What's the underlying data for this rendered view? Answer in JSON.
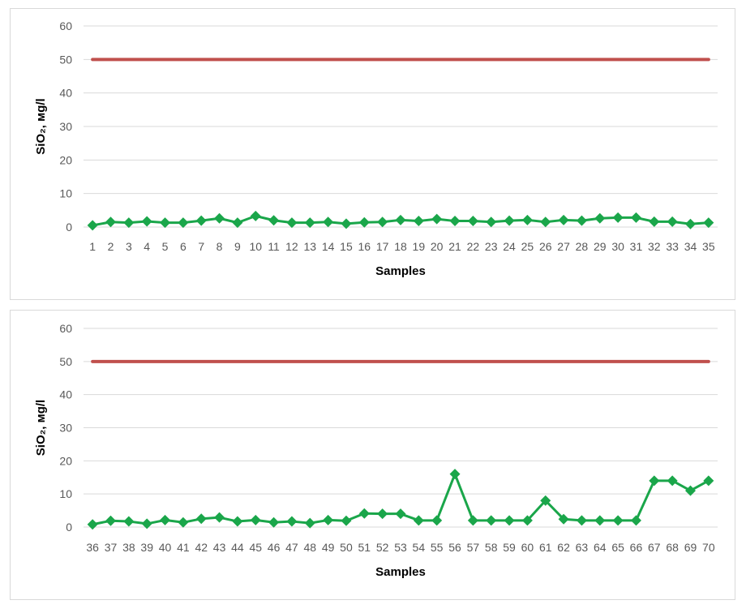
{
  "chart_data": [
    {
      "type": "line",
      "title": "",
      "xlabel": "Samples",
      "ylabel": "SiO₂, мg/l",
      "ylim": [
        0,
        60
      ],
      "y_ticks": [
        "0",
        "10",
        "20",
        "30",
        "40",
        "50",
        "60"
      ],
      "grid": true,
      "legend": "none",
      "categories": [
        "1",
        "2",
        "3",
        "4",
        "5",
        "6",
        "7",
        "8",
        "9",
        "10",
        "11",
        "12",
        "13",
        "14",
        "15",
        "16",
        "17",
        "18",
        "19",
        "20",
        "21",
        "22",
        "23",
        "24",
        "25",
        "26",
        "27",
        "28",
        "29",
        "30",
        "31",
        "32",
        "33",
        "34",
        "35"
      ],
      "series": [
        {
          "color": "#1aa64a",
          "marker": "diamond",
          "values": [
            0.5,
            1.5,
            1.3,
            1.7,
            1.3,
            1.3,
            1.9,
            2.6,
            1.3,
            3.3,
            2.0,
            1.3,
            1.3,
            1.5,
            1.0,
            1.4,
            1.5,
            2.1,
            1.8,
            2.4,
            1.8,
            1.8,
            1.5,
            1.9,
            2.1,
            1.5,
            2.1,
            1.9,
            2.6,
            2.8,
            2.8,
            1.6,
            1.6,
            0.9,
            1.3
          ]
        },
        {
          "color": "#c0504d",
          "marker": "none",
          "values": [
            50,
            50,
            50,
            50,
            50,
            50,
            50,
            50,
            50,
            50,
            50,
            50,
            50,
            50,
            50,
            50,
            50,
            50,
            50,
            50,
            50,
            50,
            50,
            50,
            50,
            50,
            50,
            50,
            50,
            50,
            50,
            50,
            50,
            50,
            50
          ]
        }
      ]
    },
    {
      "type": "line",
      "title": "",
      "xlabel": "Samples",
      "ylabel": "SiO₂, мg/l",
      "ylim": [
        0,
        60
      ],
      "y_ticks": [
        "0",
        "10",
        "20",
        "30",
        "40",
        "50",
        "60"
      ],
      "grid": true,
      "legend": "none",
      "categories": [
        "36",
        "37",
        "38",
        "39",
        "40",
        "41",
        "42",
        "43",
        "44",
        "45",
        "46",
        "47",
        "48",
        "49",
        "50",
        "51",
        "52",
        "53",
        "54",
        "55",
        "56",
        "57",
        "58",
        "59",
        "60",
        "61",
        "62",
        "63",
        "64",
        "65",
        "66",
        "67",
        "68",
        "69",
        "70"
      ],
      "series": [
        {
          "color": "#1aa64a",
          "marker": "diamond",
          "values": [
            0.8,
            1.9,
            1.7,
            1.0,
            2.1,
            1.4,
            2.5,
            2.9,
            1.7,
            2.1,
            1.4,
            1.7,
            1.2,
            2.1,
            1.9,
            4.1,
            4.0,
            4.0,
            2.0,
            2.0,
            16.0,
            2.0,
            2.0,
            2.0,
            2.0,
            8.0,
            2.4,
            2.0,
            2.0,
            2.0,
            2.0,
            14.0,
            14.0,
            11.0,
            14.0
          ]
        },
        {
          "color": "#c0504d",
          "marker": "none",
          "values": [
            50,
            50,
            50,
            50,
            50,
            50,
            50,
            50,
            50,
            50,
            50,
            50,
            50,
            50,
            50,
            50,
            50,
            50,
            50,
            50,
            50,
            50,
            50,
            50,
            50,
            50,
            50,
            50,
            50,
            50,
            50,
            50,
            50,
            50,
            50
          ]
        }
      ]
    }
  ]
}
